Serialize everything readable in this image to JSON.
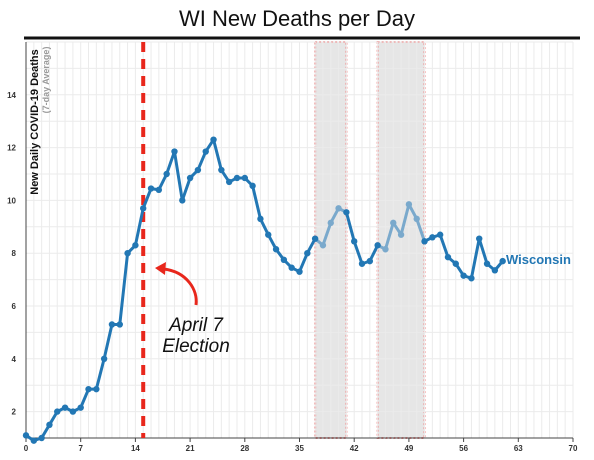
{
  "chart_data": {
    "type": "line",
    "title": "WI New Deaths per Day",
    "ylabel": "New Daily COVID-19 Deaths",
    "ylabel_sub": "(7-day Average)",
    "xlim": [
      0,
      70
    ],
    "ylim": [
      1,
      16
    ],
    "x_ticks": [
      0,
      7,
      14,
      21,
      28,
      35,
      42,
      49,
      56,
      63,
      70
    ],
    "y_ticks": [
      2,
      4,
      6,
      8,
      10,
      12,
      14
    ],
    "grid": true,
    "series": [
      {
        "name": "Wisconsin",
        "color": "#2277b4",
        "highlight_color": "#7aa9cc",
        "x": [
          0,
          1,
          2,
          3,
          4,
          5,
          6,
          7,
          8,
          9,
          10,
          11,
          12,
          13,
          14,
          15,
          16,
          17,
          18,
          19,
          20,
          21,
          22,
          23,
          24,
          25,
          26,
          27,
          28,
          29,
          30,
          31,
          32,
          33,
          34,
          35,
          36,
          37,
          38,
          39,
          40,
          41,
          42,
          43,
          44,
          45,
          46,
          47,
          48,
          49,
          50,
          51,
          52,
          53,
          54,
          55,
          56,
          57,
          58,
          59,
          60,
          61
        ],
        "values": [
          1.1,
          0.9,
          1.0,
          1.5,
          2.0,
          2.15,
          2.0,
          2.15,
          2.85,
          2.85,
          4.0,
          5.3,
          5.3,
          8.0,
          8.3,
          9.7,
          10.45,
          10.4,
          11.0,
          11.85,
          10.0,
          10.85,
          11.15,
          11.85,
          12.3,
          11.15,
          10.7,
          10.85,
          10.85,
          10.55,
          9.3,
          8.7,
          8.15,
          7.75,
          7.45,
          7.3,
          8.0,
          8.55,
          8.3,
          9.15,
          9.7,
          9.55,
          8.45,
          7.6,
          7.7,
          8.3,
          8.15,
          9.15,
          8.7,
          9.85,
          9.3,
          8.45,
          8.6,
          8.7,
          7.85,
          7.6,
          7.15,
          7.05,
          8.55,
          7.6,
          7.35,
          7.7
        ]
      }
    ],
    "reference_line": {
      "x": 15,
      "color": "#e8271c",
      "style": "dashed"
    },
    "shaded_ranges": [
      [
        37,
        41
      ],
      [
        45,
        51
      ]
    ],
    "annotation": {
      "lines": [
        "April 7",
        "Election"
      ],
      "arrow_color": "#e8271c"
    }
  }
}
